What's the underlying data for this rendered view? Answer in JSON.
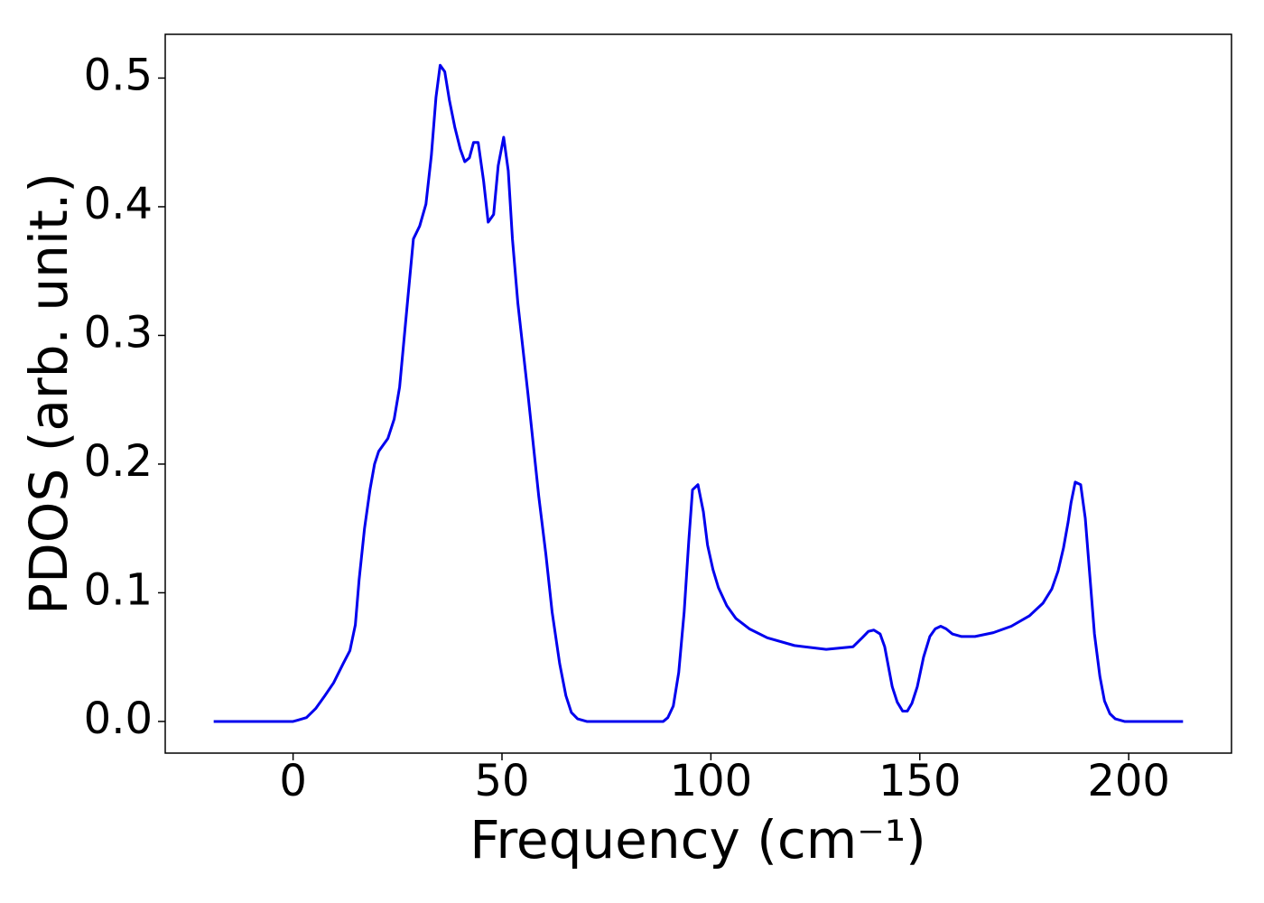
{
  "chart_data": {
    "type": "line",
    "xlabel": "Frequency (cm⁻¹)",
    "ylabel": "PDOS (arb. unit.)",
    "xlim": [
      -30.6,
      224.6
    ],
    "ylim": [
      -0.0246,
      0.534
    ],
    "xticks": [
      0,
      50,
      100,
      150,
      200
    ],
    "yticks": [
      {
        "value": 0,
        "label": "0.0"
      },
      0.1,
      0.2,
      0.3,
      0.4,
      0.5
    ],
    "series": [
      {
        "color": "#0000ee",
        "x": [
          -19,
          -10,
          0,
          1.1,
          3.2,
          5.4,
          7.6,
          9.7,
          12,
          13.6,
          14.9,
          15.8,
          17.1,
          18.4,
          19.5,
          20.5,
          22.7,
          24.2,
          25.5,
          27.5,
          28.8,
          30.3,
          31.8,
          33.1,
          34.2,
          35.2,
          36.3,
          37.4,
          38.7,
          40,
          41.1,
          42.2,
          43.2,
          44.3,
          45.6,
          46.7,
          48,
          49.1,
          50.4,
          51.5,
          52.5,
          53.8,
          56.2,
          58.8,
          60.5,
          62,
          63.8,
          65.3,
          66.6,
          68.1,
          70.3,
          80,
          88.6,
          89.7,
          91,
          92.3,
          93.6,
          94.7,
          95.6,
          96.9,
          98.2,
          99.2,
          100.5,
          101.8,
          103.8,
          106,
          109.2,
          113.5,
          120,
          127.6,
          134,
          136.2,
          137.7,
          139,
          140.5,
          141.6,
          143.4,
          144.6,
          145.9,
          147,
          148.1,
          149.4,
          150.9,
          152.4,
          153.7,
          155,
          156.3,
          157.8,
          160,
          163.2,
          167.6,
          171.9,
          176.2,
          179.5,
          181.6,
          183.1,
          184.4,
          185.5,
          186.2,
          187.2,
          188.5,
          189.6,
          190.7,
          191.8,
          193.1,
          194.2,
          195.5,
          196.8,
          199,
          213
        ],
        "values": [
          0,
          0,
          0,
          0.001,
          0.003,
          0.01,
          0.02,
          0.03,
          0.045,
          0.055,
          0.075,
          0.11,
          0.15,
          0.18,
          0.2,
          0.21,
          0.22,
          0.235,
          0.26,
          0.33,
          0.375,
          0.385,
          0.402,
          0.44,
          0.485,
          0.51,
          0.505,
          0.483,
          0.462,
          0.445,
          0.435,
          0.438,
          0.45,
          0.45,
          0.42,
          0.388,
          0.394,
          0.432,
          0.454,
          0.428,
          0.375,
          0.325,
          0.255,
          0.175,
          0.13,
          0.085,
          0.045,
          0.02,
          0.007,
          0.002,
          0,
          0,
          0,
          0.003,
          0.012,
          0.038,
          0.085,
          0.14,
          0.18,
          0.184,
          0.163,
          0.137,
          0.118,
          0.104,
          0.09,
          0.08,
          0.072,
          0.065,
          0.059,
          0.056,
          0.058,
          0.065,
          0.07,
          0.071,
          0.068,
          0.058,
          0.027,
          0.015,
          0.008,
          0.008,
          0.014,
          0.027,
          0.05,
          0.066,
          0.072,
          0.074,
          0.072,
          0.068,
          0.066,
          0.066,
          0.069,
          0.074,
          0.082,
          0.092,
          0.103,
          0.117,
          0.135,
          0.155,
          0.17,
          0.186,
          0.184,
          0.158,
          0.113,
          0.068,
          0.035,
          0.016,
          0.006,
          0.002,
          0,
          0
        ]
      }
    ]
  }
}
